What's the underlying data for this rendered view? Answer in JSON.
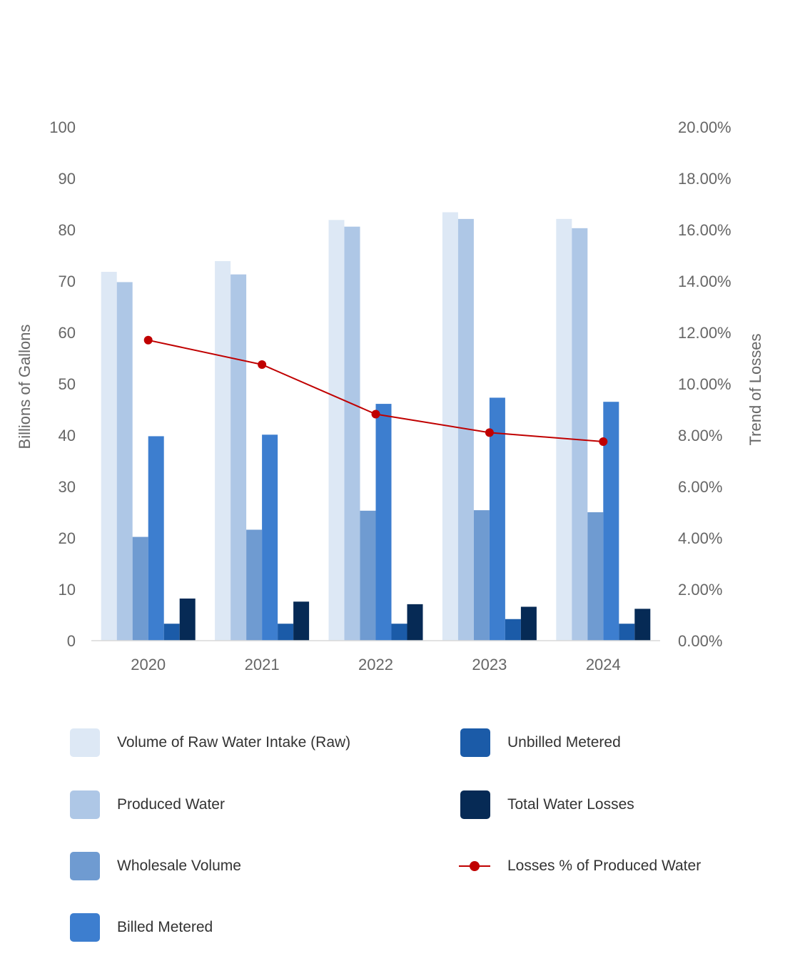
{
  "chart_data": {
    "type": "bar",
    "categories": [
      "2020",
      "2021",
      "2022",
      "2023",
      "2024"
    ],
    "series": [
      {
        "name": "Volume of Raw Water Intake (Raw)",
        "values": [
          71.8,
          73.9,
          81.9,
          83.4,
          82.1
        ],
        "color": "#dde8f5"
      },
      {
        "name": "Produced Water",
        "values": [
          69.8,
          71.3,
          80.6,
          82.1,
          80.3
        ],
        "color": "#aec7e6"
      },
      {
        "name": "Wholesale Volume",
        "values": [
          20.2,
          21.6,
          25.3,
          25.4,
          25.0
        ],
        "color": "#6f9bd1"
      },
      {
        "name": "Billed Metered",
        "values": [
          39.8,
          40.1,
          46.1,
          47.3,
          46.5
        ],
        "color": "#3d7ecf"
      },
      {
        "name": "Unbilled Metered",
        "values": [
          3.3,
          3.3,
          3.3,
          4.2,
          3.3
        ],
        "color": "#1b5ba8"
      },
      {
        "name": "Total Water Losses",
        "values": [
          8.2,
          7.6,
          7.1,
          6.6,
          6.2
        ],
        "color": "#062a55"
      }
    ],
    "line_series": {
      "name": "Losses % of Produced Water",
      "values": [
        11.7,
        10.75,
        8.82,
        8.1,
        7.75
      ],
      "color": "#c00000"
    },
    "ylabel": "Billions of Gallons",
    "y2label": "Trend of Losses",
    "ylim": [
      0,
      100
    ],
    "y2lim": [
      0,
      20
    ],
    "yticks": [
      "0",
      "10",
      "20",
      "30",
      "40",
      "50",
      "60",
      "70",
      "80",
      "90",
      "100"
    ],
    "y2ticks": [
      "0.00%",
      "2.00%",
      "4.00%",
      "6.00%",
      "8.00%",
      "10.00%",
      "12.00%",
      "14.00%",
      "16.00%",
      "18.00%",
      "20.00%"
    ],
    "grid": false,
    "legend_position": "bottom"
  },
  "legend": [
    {
      "label": "Volume of Raw Water Intake (Raw)",
      "color": "#dde8f5",
      "kind": "box"
    },
    {
      "label": "Unbilled Metered",
      "color": "#1b5ba8",
      "kind": "box"
    },
    {
      "label": "Produced Water",
      "color": "#aec7e6",
      "kind": "box"
    },
    {
      "label": "Total Water Losses",
      "color": "#062a55",
      "kind": "box"
    },
    {
      "label": "Wholesale Volume",
      "color": "#6f9bd1",
      "kind": "box"
    },
    {
      "label": "Losses % of Produced Water",
      "color": "#c00000",
      "kind": "line"
    },
    {
      "label": "Billed Metered",
      "color": "#3d7ecf",
      "kind": "box"
    }
  ]
}
